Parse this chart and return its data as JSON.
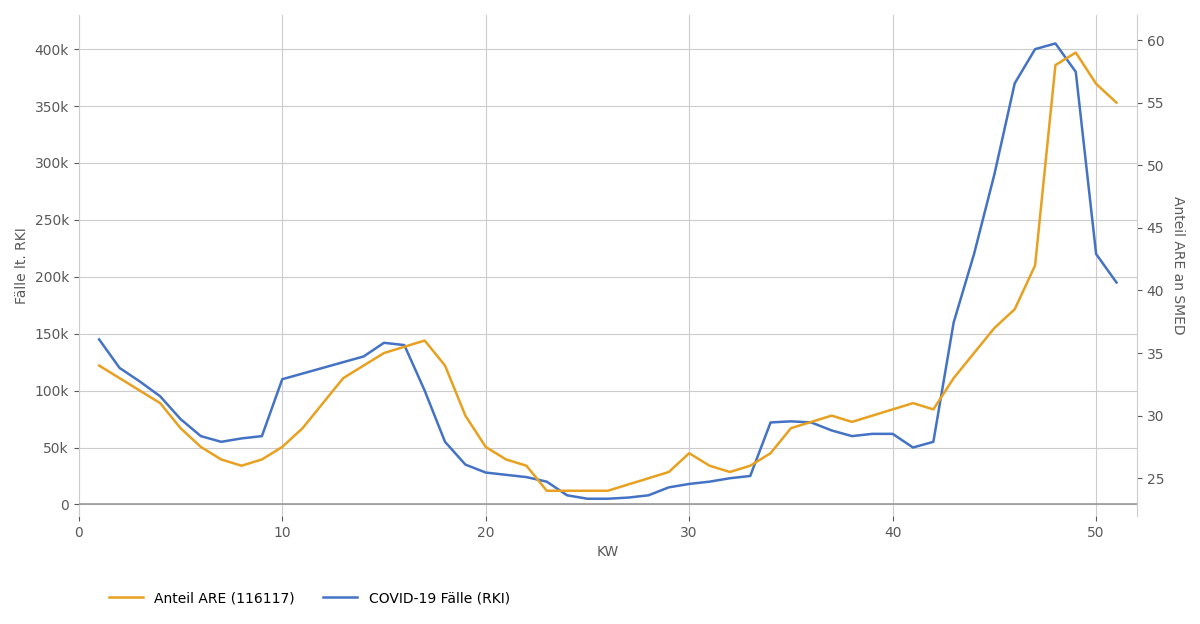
{
  "xlabel": "KW",
  "ylabel_left": "Fälle lt. RKI",
  "ylabel_right": "Anteil ARE an SMED",
  "legend": [
    "Anteil ARE (116117)",
    "COVID-19 Fälle (RKI)"
  ],
  "color_orange": "#E8A020",
  "color_blue": "#4472C4",
  "kw": [
    1,
    2,
    3,
    4,
    5,
    6,
    7,
    8,
    9,
    10,
    11,
    12,
    13,
    14,
    15,
    16,
    17,
    18,
    19,
    20,
    21,
    22,
    23,
    24,
    25,
    26,
    27,
    28,
    29,
    30,
    31,
    32,
    33,
    34,
    35,
    36,
    37,
    38,
    39,
    40,
    41,
    42,
    43,
    44,
    45,
    46,
    47,
    48,
    49,
    50,
    51
  ],
  "are_pct": [
    34,
    33,
    32,
    31,
    29,
    27.5,
    26.5,
    26,
    26.5,
    27.5,
    29,
    31,
    33,
    34,
    35,
    35.5,
    36,
    34,
    30,
    27.5,
    26.5,
    26,
    24,
    24,
    24,
    24,
    24.5,
    25,
    25.5,
    27,
    26,
    25.5,
    26,
    27,
    29,
    29.5,
    30,
    29.5,
    30,
    30.5,
    31,
    30.5,
    33,
    35,
    37,
    38.5,
    42,
    58,
    59,
    56.5,
    55
  ],
  "rki_values": [
    145000,
    120000,
    108000,
    95000,
    75000,
    60000,
    55000,
    58000,
    60000,
    110000,
    115000,
    120000,
    125000,
    130000,
    142000,
    140000,
    100000,
    55000,
    35000,
    28000,
    26000,
    24000,
    20000,
    8000,
    5000,
    5000,
    6000,
    8000,
    15000,
    18000,
    20000,
    23000,
    25000,
    72000,
    73000,
    72000,
    65000,
    60000,
    62000,
    62000,
    50000,
    55000,
    160000,
    220000,
    290000,
    370000,
    400000,
    405000,
    380000,
    220000,
    195000
  ],
  "xlim": [
    0,
    52
  ],
  "ylim_left": [
    -10000,
    430000
  ],
  "ylim_right": [
    22,
    62
  ],
  "xticks": [
    0,
    10,
    20,
    30,
    40,
    50
  ],
  "yticks_left": [
    0,
    50000,
    100000,
    150000,
    200000,
    250000,
    300000,
    350000,
    400000
  ],
  "yticks_right": [
    25,
    30,
    35,
    40,
    45,
    50,
    55,
    60
  ],
  "background_color": "#FFFFFF",
  "grid_color": "#CCCCCC",
  "linewidth": 1.8,
  "font_color": "#595959",
  "font_size": 10
}
